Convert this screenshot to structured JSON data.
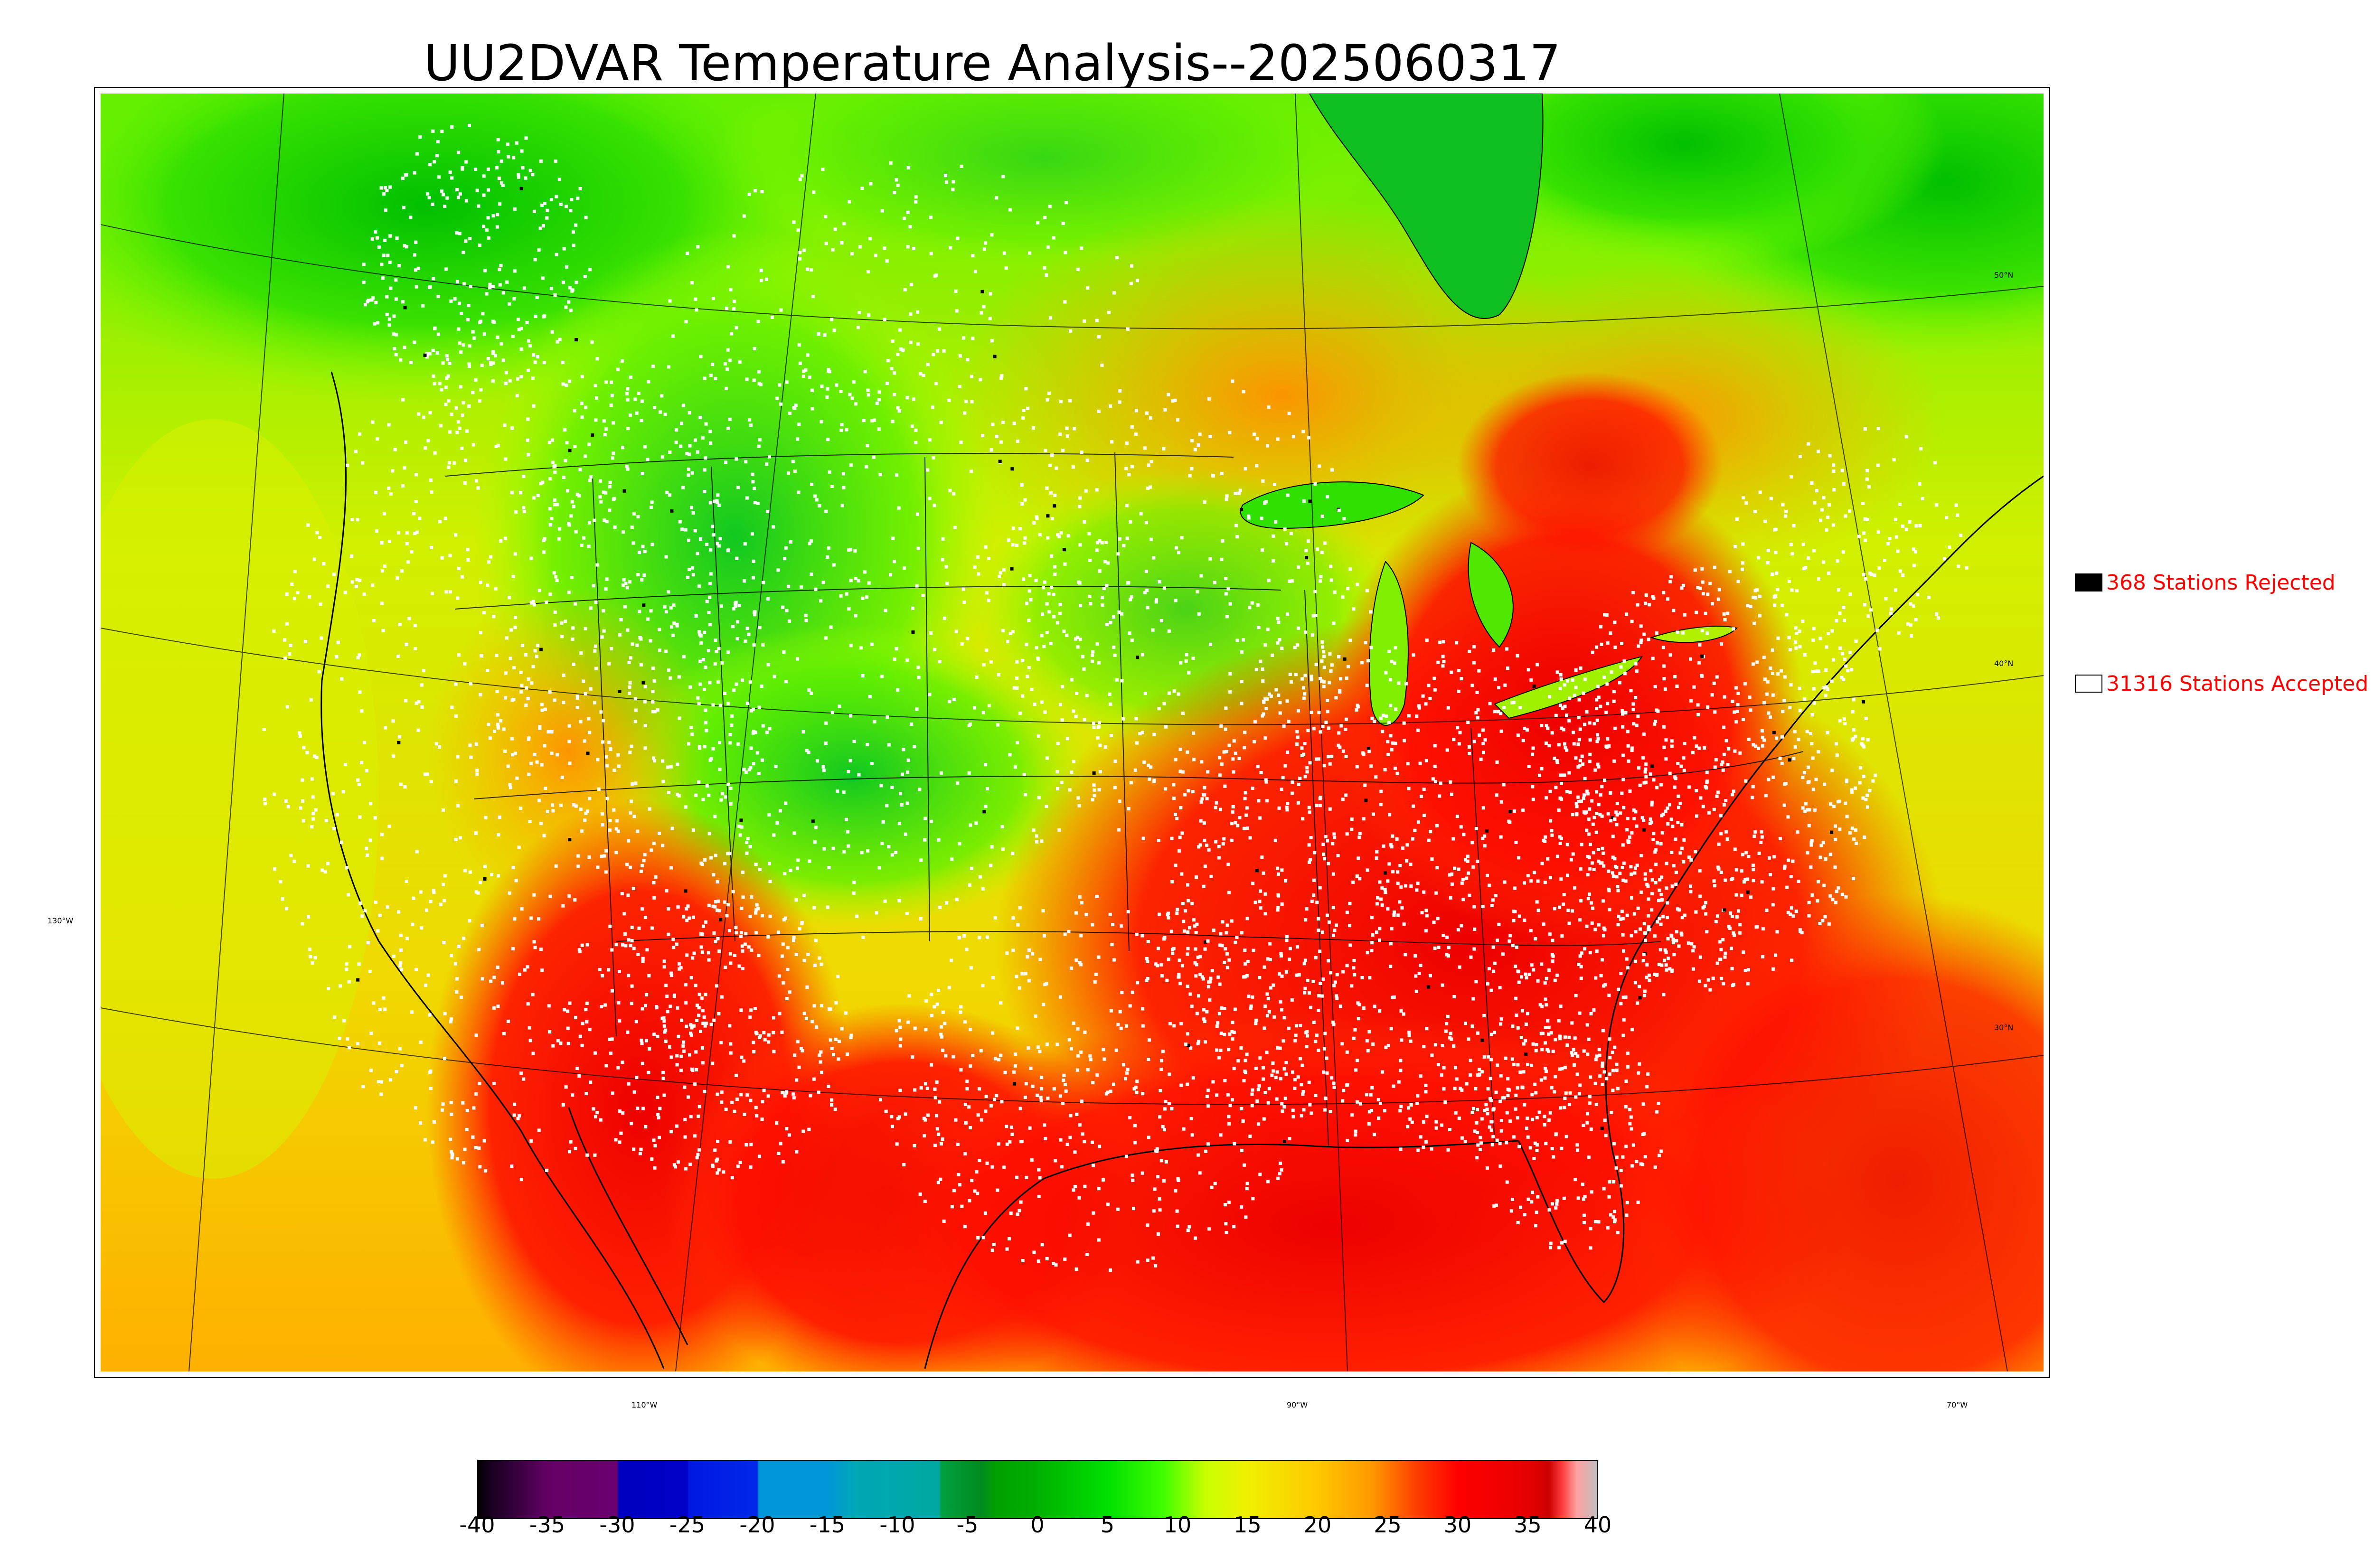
{
  "title": "UU2DVAR Temperature Analysis--2025060317",
  "legend": {
    "rejected": {
      "label": "368 Stations Rejected",
      "swatch_color": "#000000"
    },
    "accepted": {
      "label": "31316 Stations Accepted",
      "swatch_color": "#ffffff"
    },
    "label_color": "#ff0000"
  },
  "map": {
    "longitude_labels": [
      "130°W",
      "110°W",
      "90°W",
      "70°W"
    ],
    "latitude_labels": [
      "50°N",
      "40°N",
      "30°N"
    ]
  },
  "colorbar": {
    "ticks": [
      "-40",
      "-35",
      "-30",
      "-25",
      "-20",
      "-15",
      "-10",
      "-5",
      "0",
      "5",
      "10",
      "15",
      "20",
      "25",
      "30",
      "35",
      "40"
    ],
    "range": [
      -40,
      40
    ],
    "stops": [
      {
        "value": -40,
        "color": "#000000"
      },
      {
        "value": -39,
        "color": "#1a0020"
      },
      {
        "value": -37,
        "color": "#3a0040"
      },
      {
        "value": -35,
        "color": "#640064"
      },
      {
        "value": -30,
        "color": "#6a0070"
      },
      {
        "value": -29.9,
        "color": "#0000c0"
      },
      {
        "value": -25,
        "color": "#0000c8"
      },
      {
        "value": -24.9,
        "color": "#0018e0"
      },
      {
        "value": -20,
        "color": "#0028e8"
      },
      {
        "value": -19.9,
        "color": "#0096d8"
      },
      {
        "value": -15,
        "color": "#0096d8"
      },
      {
        "value": -13,
        "color": "#00a8b8"
      },
      {
        "value": -7,
        "color": "#00a8a0"
      },
      {
        "value": -6.9,
        "color": "#00a040"
      },
      {
        "value": -4,
        "color": "#008c20"
      },
      {
        "value": -3,
        "color": "#00a000"
      },
      {
        "value": 0,
        "color": "#00b000"
      },
      {
        "value": 5,
        "color": "#00e000"
      },
      {
        "value": 9,
        "color": "#40ff00"
      },
      {
        "value": 12,
        "color": "#c8ff00"
      },
      {
        "value": 15,
        "color": "#f0f000"
      },
      {
        "value": 20,
        "color": "#ffc800"
      },
      {
        "value": 24,
        "color": "#ff9600"
      },
      {
        "value": 27,
        "color": "#ff4000"
      },
      {
        "value": 30,
        "color": "#ff0000"
      },
      {
        "value": 35,
        "color": "#e60000"
      },
      {
        "value": 36.5,
        "color": "#cc0000"
      },
      {
        "value": 37.5,
        "color": "#ff4040"
      },
      {
        "value": 38.5,
        "color": "#ffa0a0"
      },
      {
        "value": 40,
        "color": "#c0c0c0"
      }
    ]
  },
  "colors": {
    "cool": "#22e020",
    "mild": "#d8f000",
    "warm": "#ffaa00",
    "hot": "#ee0000",
    "station_accepted": "#ffffff",
    "station_rejected": "#000000",
    "lake": "#33dd00"
  }
}
